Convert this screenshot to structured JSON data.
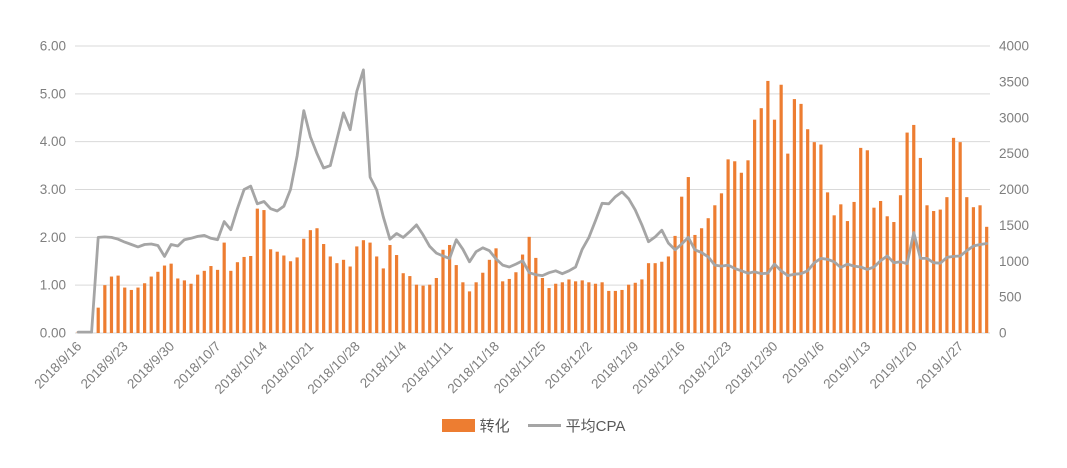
{
  "chart_data": {
    "type": "bar+line combo",
    "title": "",
    "grid": true,
    "legend_position": "bottom-center",
    "colors": {
      "bar": "#ED7D31",
      "line": "#A5A5A5",
      "axis_text": "#7F7F7F",
      "gridline": "#D9D9D9",
      "background": "#FFFFFF"
    },
    "left_axis": {
      "min": 0,
      "max": 6,
      "step": 1,
      "tick_labels": [
        "0.00",
        "1.00",
        "2.00",
        "3.00",
        "4.00",
        "5.00",
        "6.00"
      ]
    },
    "right_axis": {
      "min": 0,
      "max": 4000,
      "step": 500,
      "tick_labels": [
        "0",
        "500",
        "1000",
        "1500",
        "2000",
        "2500",
        "3000",
        "3500",
        "4000"
      ]
    },
    "x_axis": {
      "tick_every": 7,
      "label_rotation_deg": -45,
      "tick_labels": [
        "2018/9/16",
        "2018/9/23",
        "2018/9/30",
        "2018/10/7",
        "2018/10/14",
        "2018/10/21",
        "2018/10/28",
        "2018/11/4",
        "2018/11/11",
        "2018/11/18",
        "2018/11/25",
        "2018/12/2",
        "2018/12/9",
        "2018/12/16",
        "2018/12/23",
        "2018/12/30",
        "2019/1/6",
        "2019/1/13",
        "2019/1/20",
        "2019/1/27"
      ]
    },
    "categories": [
      "2018/9/16",
      "2018/9/17",
      "2018/9/18",
      "2018/9/19",
      "2018/9/20",
      "2018/9/21",
      "2018/9/22",
      "2018/9/23",
      "2018/9/24",
      "2018/9/25",
      "2018/9/26",
      "2018/9/27",
      "2018/9/28",
      "2018/9/29",
      "2018/9/30",
      "2018/10/1",
      "2018/10/2",
      "2018/10/3",
      "2018/10/4",
      "2018/10/5",
      "2018/10/6",
      "2018/10/7",
      "2018/10/8",
      "2018/10/9",
      "2018/10/10",
      "2018/10/11",
      "2018/10/12",
      "2018/10/13",
      "2018/10/14",
      "2018/10/15",
      "2018/10/16",
      "2018/10/17",
      "2018/10/18",
      "2018/10/19",
      "2018/10/20",
      "2018/10/21",
      "2018/10/22",
      "2018/10/23",
      "2018/10/24",
      "2018/10/25",
      "2018/10/26",
      "2018/10/27",
      "2018/10/28",
      "2018/10/29",
      "2018/10/30",
      "2018/10/31",
      "2018/11/1",
      "2018/11/2",
      "2018/11/3",
      "2018/11/4",
      "2018/11/5",
      "2018/11/6",
      "2018/11/7",
      "2018/11/8",
      "2018/11/9",
      "2018/11/10",
      "2018/11/11",
      "2018/11/12",
      "2018/11/13",
      "2018/11/14",
      "2018/11/15",
      "2018/11/16",
      "2018/11/17",
      "2018/11/18",
      "2018/11/19",
      "2018/11/20",
      "2018/11/21",
      "2018/11/22",
      "2018/11/23",
      "2018/11/24",
      "2018/11/25",
      "2018/11/26",
      "2018/11/27",
      "2018/11/28",
      "2018/11/29",
      "2018/11/30",
      "2018/12/1",
      "2018/12/2",
      "2018/12/3",
      "2018/12/4",
      "2018/12/5",
      "2018/12/6",
      "2018/12/7",
      "2018/12/8",
      "2018/12/9",
      "2018/12/10",
      "2018/12/11",
      "2018/12/12",
      "2018/12/13",
      "2018/12/14",
      "2018/12/15",
      "2018/12/16",
      "2018/12/17",
      "2018/12/18",
      "2018/12/19",
      "2018/12/20",
      "2018/12/21",
      "2018/12/22",
      "2018/12/23",
      "2018/12/24",
      "2018/12/25",
      "2018/12/26",
      "2018/12/27",
      "2018/12/28",
      "2018/12/29",
      "2018/12/30",
      "2018/12/31",
      "2019/1/1",
      "2019/1/2",
      "2019/1/3",
      "2019/1/4",
      "2019/1/5",
      "2019/1/6",
      "2019/1/7",
      "2019/1/8",
      "2019/1/9",
      "2019/1/10",
      "2019/1/11",
      "2019/1/12",
      "2019/1/13",
      "2019/1/14",
      "2019/1/15",
      "2019/1/16",
      "2019/1/17",
      "2019/1/18",
      "2019/1/19",
      "2019/1/20",
      "2019/1/21",
      "2019/1/22",
      "2019/1/23",
      "2019/1/24",
      "2019/1/25",
      "2019/1/26",
      "2019/1/27",
      "2019/1/28",
      "2019/1/29",
      "2019/1/30",
      "2019/1/31"
    ],
    "series": [
      {
        "name": "转化",
        "type": "bar",
        "axis": "left",
        "color": "#ED7D31",
        "values": [
          0.03,
          0,
          0,
          0.53,
          1.0,
          1.18,
          1.2,
          0.95,
          0.9,
          0.95,
          1.04,
          1.18,
          1.28,
          1.41,
          1.45,
          1.14,
          1.1,
          1.03,
          1.22,
          1.3,
          1.4,
          1.32,
          1.89,
          1.3,
          1.48,
          1.59,
          1.61,
          2.6,
          2.57,
          1.75,
          1.7,
          1.62,
          1.5,
          1.58,
          1.97,
          2.15,
          2.19,
          1.86,
          1.6,
          1.46,
          1.53,
          1.39,
          1.81,
          1.94,
          1.89,
          1.6,
          1.35,
          1.84,
          1.63,
          1.25,
          1.19,
          1.01,
          0.99,
          1.01,
          1.15,
          1.74,
          1.84,
          1.42,
          1.06,
          0.87,
          1.06,
          1.26,
          1.53,
          1.77,
          1.08,
          1.13,
          1.27,
          1.64,
          2.01,
          1.57,
          1.15,
          0.94,
          1.03,
          1.06,
          1.12,
          1.08,
          1.1,
          1.06,
          1.03,
          1.06,
          0.88,
          0.88,
          0.9,
          1.01,
          1.05,
          1.12,
          1.46,
          1.46,
          1.49,
          1.6,
          2.03,
          2.85,
          3.26,
          2.05,
          2.19,
          2.4,
          2.67,
          2.92,
          3.63,
          3.59,
          3.35,
          3.61,
          4.46,
          4.7,
          5.27,
          4.46,
          5.19,
          3.75,
          4.89,
          4.79,
          4.26,
          3.99,
          3.94,
          2.94,
          2.46,
          2.69,
          2.34,
          2.74,
          3.87,
          3.82,
          2.62,
          2.76,
          2.44,
          2.32,
          2.88,
          4.19,
          4.35,
          3.66,
          2.67,
          2.55,
          2.58,
          2.84,
          4.08,
          3.99,
          2.84,
          2.63,
          2.67,
          2.22
        ]
      },
      {
        "name": "平均CPA",
        "type": "line",
        "axis": "right",
        "color": "#A5A5A5",
        "values": [
          13,
          13,
          13,
          1333,
          1340,
          1333,
          1307,
          1267,
          1233,
          1200,
          1233,
          1240,
          1220,
          1067,
          1233,
          1213,
          1300,
          1320,
          1347,
          1360,
          1320,
          1300,
          1553,
          1440,
          1733,
          2000,
          2047,
          1800,
          1833,
          1733,
          1700,
          1767,
          2000,
          2467,
          3100,
          2733,
          2500,
          2300,
          2333,
          2700,
          3067,
          2833,
          3367,
          3667,
          2173,
          1993,
          1620,
          1307,
          1387,
          1333,
          1413,
          1507,
          1367,
          1207,
          1113,
          1073,
          1040,
          1300,
          1167,
          993,
          1133,
          1187,
          1147,
          1033,
          947,
          920,
          960,
          1007,
          840,
          813,
          800,
          840,
          867,
          827,
          867,
          920,
          1167,
          1333,
          1567,
          1807,
          1800,
          1900,
          1967,
          1873,
          1713,
          1507,
          1273,
          1340,
          1433,
          1253,
          1160,
          1240,
          1333,
          1160,
          1120,
          1060,
          947,
          933,
          947,
          900,
          867,
          833,
          853,
          827,
          833,
          960,
          867,
          800,
          820,
          827,
          867,
          980,
          1040,
          1027,
          993,
          913,
          960,
          933,
          920,
          887,
          920,
          1007,
          1073,
          980,
          993,
          967,
          1400,
          1040,
          1040,
          980,
          973,
          1053,
          1067,
          1073,
          1147,
          1213,
          1233,
          1247
        ]
      }
    ],
    "legend": [
      "转化",
      "平均CPA"
    ]
  }
}
